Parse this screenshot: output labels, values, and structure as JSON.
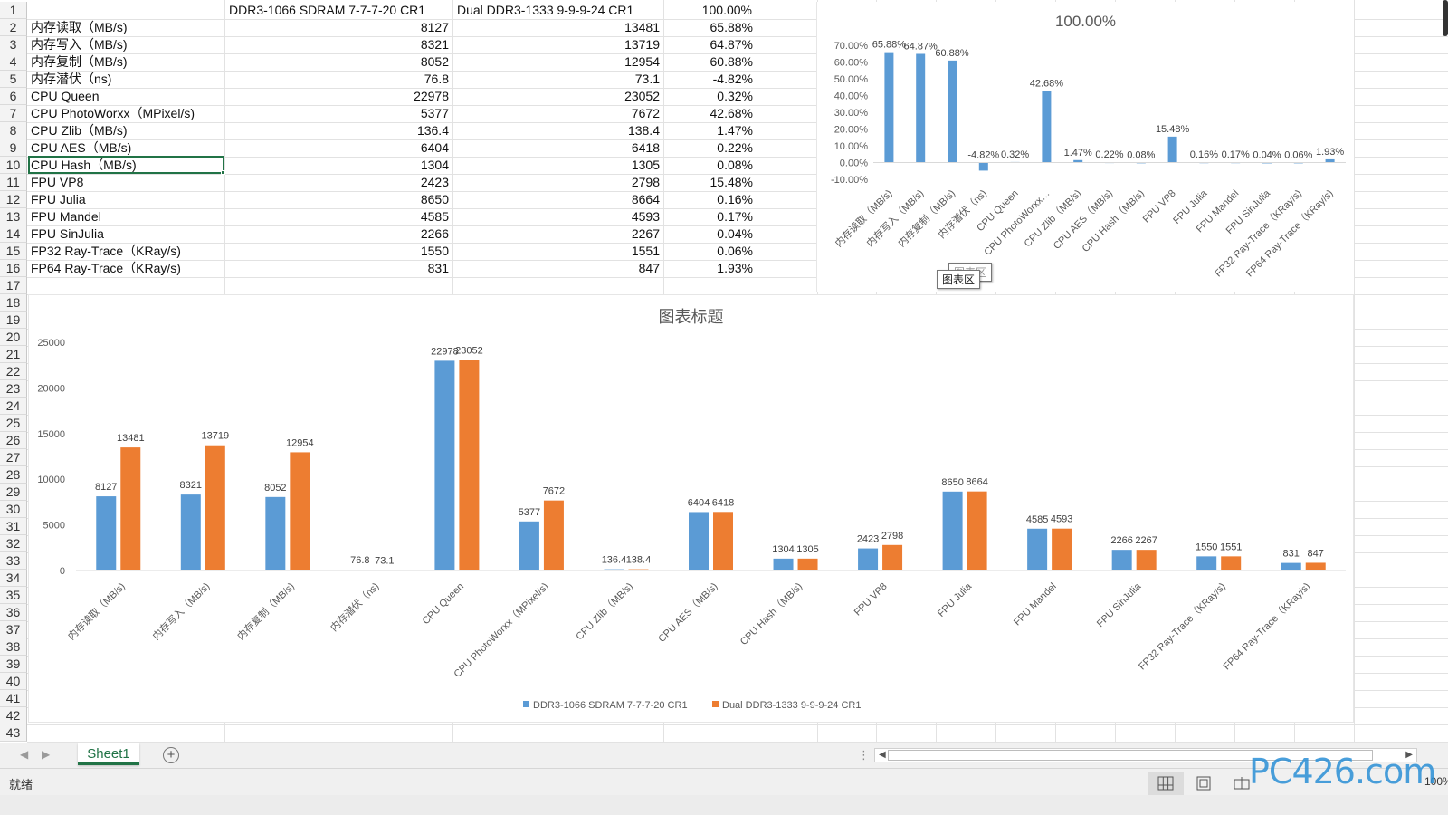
{
  "sheet": {
    "headers": [
      "",
      "DDR3-1066 SDRAM   7-7-7-20 CR1",
      "Dual DDR3-1333   9-9-9-24 CR1",
      "100.00%"
    ],
    "rows": [
      {
        "label": "内存读取（MB/s)",
        "a": "8127",
        "b": "13481",
        "pct": "65.88%"
      },
      {
        "label": "内存写入（MB/s)",
        "a": "8321",
        "b": "13719",
        "pct": "64.87%"
      },
      {
        "label": "内存复制（MB/s)",
        "a": "8052",
        "b": "12954",
        "pct": "60.88%"
      },
      {
        "label": "内存潜伏（ns)",
        "a": "76.8",
        "b": "73.1",
        "pct": "-4.82%"
      },
      {
        "label": "CPU Queen",
        "a": "22978",
        "b": "23052",
        "pct": "0.32%"
      },
      {
        "label": "CPU PhotoWorxx（MPixel/s)",
        "a": "5377",
        "b": "7672",
        "pct": "42.68%"
      },
      {
        "label": "CPU Zlib（MB/s)",
        "a": "136.4",
        "b": "138.4",
        "pct": "1.47%"
      },
      {
        "label": "CPU AES（MB/s)",
        "a": "6404",
        "b": "6418",
        "pct": "0.22%"
      },
      {
        "label": "CPU Hash（MB/s)",
        "a": "1304",
        "b": "1305",
        "pct": "0.08%"
      },
      {
        "label": "FPU VP8",
        "a": "2423",
        "b": "2798",
        "pct": "15.48%"
      },
      {
        "label": "FPU Julia",
        "a": "8650",
        "b": "8664",
        "pct": "0.16%"
      },
      {
        "label": "FPU Mandel",
        "a": "4585",
        "b": "4593",
        "pct": "0.17%"
      },
      {
        "label": "FPU SinJulia",
        "a": "2266",
        "b": "2267",
        "pct": "0.04%"
      },
      {
        "label": "FP32 Ray-Trace（KRay/s)",
        "a": "1550",
        "b": "1551",
        "pct": "0.06%"
      },
      {
        "label": "FP64 Ray-Trace（KRay/s)",
        "a": "831",
        "b": "847",
        "pct": "1.93%"
      }
    ],
    "row_numbers": [
      "1",
      "2",
      "3",
      "4",
      "5",
      "6",
      "7",
      "8",
      "9",
      "10",
      "11",
      "12",
      "13",
      "14",
      "15",
      "16",
      "17",
      "18",
      "19",
      "20",
      "21",
      "22",
      "23",
      "24",
      "25",
      "26",
      "27",
      "28",
      "29",
      "30",
      "31",
      "32",
      "33",
      "34",
      "35",
      "36",
      "37",
      "38",
      "39",
      "40",
      "41",
      "42",
      "43"
    ],
    "selected_row": "10"
  },
  "tooltip": {
    "label": "图表区",
    "ghost_label": "图表区"
  },
  "chart_data": [
    {
      "type": "bar",
      "title": "100.00%",
      "categories": [
        "内存读取（MB/s)",
        "内存写入（MB/s)",
        "内存复制（MB/s)",
        "内存潜伏（ns)",
        "CPU Queen",
        "CPU PhotoWorxx…",
        "CPU Zlib（MB/s)",
        "CPU AES（MB/s)",
        "CPU Hash（MB/s)",
        "FPU VP8",
        "FPU Julia",
        "FPU Mandel",
        "FPU SinJulia",
        "FP32 Ray-Trace（KRay/s)",
        "FP64 Ray-Trace（KRay/s)"
      ],
      "values": [
        65.88,
        64.87,
        60.88,
        -4.82,
        0.32,
        42.68,
        1.47,
        0.22,
        0.08,
        15.48,
        0.16,
        0.17,
        0.04,
        0.06,
        1.93
      ],
      "data_labels": [
        "65.88%",
        "64.87%",
        "60.88%",
        "-4.82%",
        "0.32%",
        "42.68%",
        "1.47%",
        "0.22%",
        "0.08%",
        "15.48%",
        "0.16%",
        "0.17%",
        "0.04%",
        "0.06%",
        "1.93%"
      ],
      "yticks": [
        "70.00%",
        "60.00%",
        "50.00%",
        "40.00%",
        "30.00%",
        "20.00%",
        "10.00%",
        "0.00%",
        "-10.00%"
      ],
      "ylim": [
        -10,
        70
      ],
      "color": "#5b9bd5",
      "grid": false
    },
    {
      "type": "bar",
      "title": "图表标题",
      "categories": [
        "内存读取（MB/s)",
        "内存写入（MB/s)",
        "内存复制（MB/s)",
        "内存潜伏（ns)",
        "CPU Queen",
        "CPU PhotoWorxx（MPixel/s)",
        "CPU Zlib（MB/s)",
        "CPU AES（MB/s)",
        "CPU Hash（MB/s)",
        "FPU VP8",
        "FPU Julia",
        "FPU Mandel",
        "FPU SinJulia",
        "FP32 Ray-Trace（KRay/s)",
        "FP64 Ray-Trace（KRay/s)"
      ],
      "series": [
        {
          "name": "DDR3-1066 SDRAM   7-7-7-20 CR1",
          "color": "#5b9bd5",
          "values": [
            8127,
            8321,
            8052,
            76.8,
            22978,
            5377,
            136.4,
            6404,
            1304,
            2423,
            8650,
            4585,
            2266,
            1550,
            831
          ],
          "labels": [
            "8127",
            "8321",
            "8052",
            "76.8",
            "22978",
            "5377",
            "136.4",
            "6404",
            "1304",
            "2423",
            "8650",
            "4585",
            "2266",
            "1550",
            "831"
          ]
        },
        {
          "name": "Dual DDR3-1333   9-9-9-24 CR1",
          "color": "#ed7d31",
          "values": [
            13481,
            13719,
            12954,
            73.1,
            23052,
            7672,
            138.4,
            6418,
            1305,
            2798,
            8664,
            4593,
            2267,
            1551,
            847
          ],
          "labels": [
            "13481",
            "13719",
            "12954",
            "73.1",
            "23052",
            "7672",
            "138.4",
            "6418",
            "1305",
            "2798",
            "8664",
            "4593",
            "2267",
            "1551",
            "847"
          ]
        }
      ],
      "yticks": [
        "25000",
        "20000",
        "15000",
        "10000",
        "5000",
        "0"
      ],
      "ylim": [
        0,
        25000
      ],
      "legend": "bottom",
      "grid": false
    }
  ],
  "tabs": {
    "sheet_label": "Sheet1",
    "add_label": "+"
  },
  "status": {
    "ready": "就绪",
    "zoom": "100%"
  },
  "watermark": "PC426.com"
}
